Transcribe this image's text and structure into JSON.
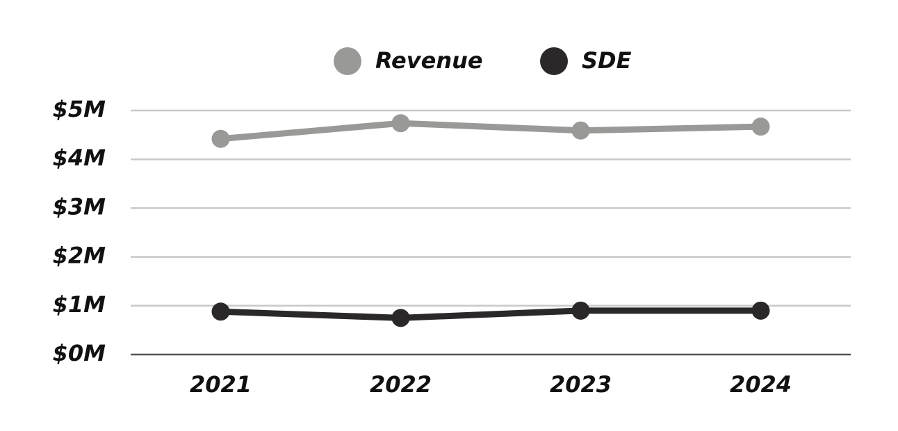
{
  "chart_data": {
    "type": "line",
    "categories": [
      "2021",
      "2022",
      "2023",
      "2024"
    ],
    "series": [
      {
        "name": "Revenue",
        "color": "#999a98",
        "values": [
          4420000,
          4740000,
          4590000,
          4670000
        ]
      },
      {
        "name": "SDE",
        "color": "#2a2829",
        "values": [
          880000,
          750000,
          900000,
          900000
        ]
      }
    ],
    "ylim": [
      0,
      5000000
    ],
    "yticks": [
      {
        "value": 0,
        "label": "$0M"
      },
      {
        "value": 1000000,
        "label": "$1M"
      },
      {
        "value": 2000000,
        "label": "$2M"
      },
      {
        "value": 3000000,
        "label": "$3M"
      },
      {
        "value": 4000000,
        "label": "$4M"
      },
      {
        "value": 5000000,
        "label": "$5M"
      }
    ],
    "grid": true
  }
}
